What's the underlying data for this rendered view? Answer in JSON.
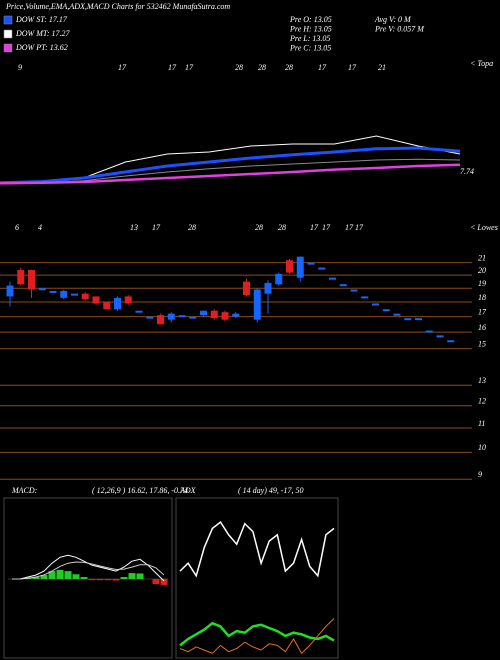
{
  "header": {
    "title": "Price,Volume,EMA,ADX,MACD Charts for 532462  MunafaSutra.com",
    "legend": [
      {
        "label": "DOW ST: 17.17",
        "color": "#1e50ff"
      },
      {
        "label": "DOW MT: 17.27",
        "color": "#ffffff"
      },
      {
        "label": "DOW PT: 13.62",
        "color": "#e040e0"
      }
    ],
    "info_left": [
      "Pre  O: 13.05",
      "Pre  H: 13.05",
      "Pre  L: 13.05",
      "Pre  C: 13.05"
    ],
    "info_right": [
      "Avg V: 0  M",
      "Pre  V: 0.057 M"
    ]
  },
  "chart_data": [
    {
      "type": "line",
      "date_labels": [
        "9",
        "17",
        "17",
        "17",
        "28",
        "28",
        "28",
        "17",
        "17",
        "21"
      ],
      "corner_label": "< Topa",
      "last_label": "7.74",
      "ylim": [
        0,
        40
      ],
      "series": [
        {
          "color": "#8a8a8a",
          "width": 1,
          "values": [
            9.0,
            9.2,
            9.8,
            11.0,
            12.0,
            12.8,
            13.5,
            14.0,
            14.5,
            15.0,
            15.2,
            15.0
          ]
        },
        {
          "color": "#ffffff",
          "width": 1,
          "values": [
            9.3,
            9.3,
            10.5,
            14.5,
            16.5,
            17.0,
            18.5,
            19.0,
            19.0,
            21.0,
            18.5,
            16.5
          ]
        },
        {
          "color": "#1e50ff",
          "width": 3,
          "values": [
            9.3,
            9.6,
            10.5,
            12.0,
            13.5,
            14.5,
            15.5,
            16.3,
            17.0,
            17.8,
            18.0,
            17.2
          ]
        },
        {
          "color": "#e040e0",
          "width": 2.5,
          "values": [
            9.2,
            9.3,
            9.5,
            10.0,
            10.5,
            11.0,
            11.5,
            12.0,
            12.6,
            13.0,
            13.5,
            13.8
          ]
        }
      ]
    },
    {
      "type": "candlestick",
      "date_labels": [
        "6",
        "4",
        "13",
        "17",
        "28",
        "28",
        "28",
        "17",
        "17",
        "17",
        "17"
      ],
      "corner_label": "< Lowes",
      "log_scale": true,
      "ylim": [
        8.8,
        22.5
      ],
      "yticks": [
        21,
        20,
        19,
        18,
        17,
        16,
        15,
        13,
        12,
        11,
        10,
        9
      ],
      "grid": true,
      "up_color": "#1565ff",
      "down_color": "#e02020",
      "grid_color": "#8b4a1a",
      "open": [
        18.4,
        20.4,
        20.4,
        19.0,
        18.8,
        18.3,
        18.6,
        18.6,
        18.4,
        18.0,
        17.5,
        18.4,
        17.4,
        17.0,
        17.1,
        16.8,
        17.1,
        17.0,
        17.1,
        17.4,
        17.3,
        17.0,
        19.5,
        16.8,
        18.6,
        19.3,
        21.2,
        19.8,
        21.0,
        20.6,
        19.8,
        19.3,
        18.9,
        18.4,
        17.9,
        17.5,
        17.2,
        16.9,
        16.9,
        16.1,
        15.8,
        15.5
      ],
      "high": [
        19.5,
        20.6,
        20.4,
        19.0,
        18.8,
        18.9,
        18.6,
        18.7,
        18.4,
        18.0,
        18.4,
        18.5,
        17.4,
        17.0,
        17.2,
        17.3,
        17.1,
        17.0,
        17.4,
        17.5,
        17.4,
        17.3,
        19.7,
        19.0,
        19.6,
        20.2,
        21.3,
        21.5,
        21.0,
        20.6,
        19.8,
        19.3,
        18.9,
        18.4,
        17.9,
        17.5,
        17.2,
        16.9,
        16.9,
        16.1,
        15.8,
        15.5
      ],
      "low": [
        17.7,
        19.2,
        18.3,
        19.0,
        18.8,
        18.2,
        18.6,
        18.1,
        17.8,
        17.5,
        17.4,
        17.8,
        17.4,
        17.0,
        16.5,
        16.6,
        17.1,
        17.0,
        17.0,
        16.8,
        16.7,
        16.9,
        18.4,
        16.6,
        17.2,
        19.2,
        20.1,
        19.5,
        21.0,
        20.6,
        19.8,
        19.3,
        18.9,
        18.4,
        17.9,
        17.5,
        17.2,
        16.9,
        16.9,
        16.1,
        15.8,
        15.5
      ],
      "close": [
        19.2,
        19.3,
        18.9,
        19.0,
        18.8,
        18.8,
        18.6,
        18.2,
        17.9,
        17.5,
        18.3,
        17.9,
        17.4,
        17.0,
        16.5,
        17.2,
        17.1,
        17.0,
        17.4,
        16.9,
        16.8,
        17.2,
        18.5,
        18.9,
        19.4,
        20.1,
        20.2,
        21.5,
        21.0,
        20.6,
        19.8,
        19.3,
        18.9,
        18.4,
        17.9,
        17.5,
        17.2,
        16.9,
        16.9,
        16.1,
        15.8,
        15.5
      ]
    },
    {
      "type": "macd",
      "title": "MACD:",
      "params": "( 12,26,9 ) 16.62, 17.86, -0.74",
      "ylim": [
        -2,
        2
      ],
      "series": [
        {
          "color": "#ffffff",
          "values": [
            0.0,
            0.0,
            0.05,
            0.1,
            0.2,
            0.4,
            0.55,
            0.6,
            0.55,
            0.45,
            0.35,
            0.3,
            0.25,
            0.2,
            0.3,
            0.45,
            0.5,
            0.35,
            0.15,
            -0.05
          ]
        },
        {
          "color": "#cccccc",
          "values": [
            0.0,
            0.0,
            0.02,
            0.05,
            0.1,
            0.2,
            0.32,
            0.4,
            0.43,
            0.42,
            0.38,
            0.33,
            0.28,
            0.24,
            0.25,
            0.3,
            0.36,
            0.36,
            0.28,
            0.1
          ]
        }
      ],
      "histogram": [
        0.0,
        0.0,
        0.03,
        0.05,
        0.1,
        0.2,
        0.23,
        0.2,
        0.12,
        0.05,
        -0.03,
        -0.03,
        -0.03,
        -0.04,
        0.05,
        0.15,
        0.14,
        0.0,
        -0.13,
        -0.15
      ],
      "up_color": "#22cc22",
      "down_color": "#e02020"
    },
    {
      "type": "adx",
      "title": "ADX",
      "params": "( 14 day) 49, -17, 50",
      "ylim": [
        0,
        100
      ],
      "series": [
        {
          "color": "#ffffff",
          "width": 1.5,
          "values": [
            55,
            60,
            52,
            70,
            82,
            86,
            78,
            72,
            85,
            80,
            60,
            74,
            78,
            55,
            60,
            75,
            58,
            52,
            78,
            82
          ]
        },
        {
          "color": "#22dd22",
          "width": 2.5,
          "values": [
            8,
            12,
            15,
            18,
            22,
            20,
            14,
            17,
            16,
            20,
            21,
            19,
            17,
            14,
            16,
            15,
            13,
            12,
            14,
            11
          ]
        },
        {
          "color": "#e07020",
          "width": 1,
          "values": [
            6,
            4,
            7,
            5,
            3,
            8,
            4,
            6,
            10,
            7,
            5,
            9,
            8,
            4,
            12,
            3,
            8,
            14,
            20,
            25
          ]
        }
      ]
    }
  ]
}
